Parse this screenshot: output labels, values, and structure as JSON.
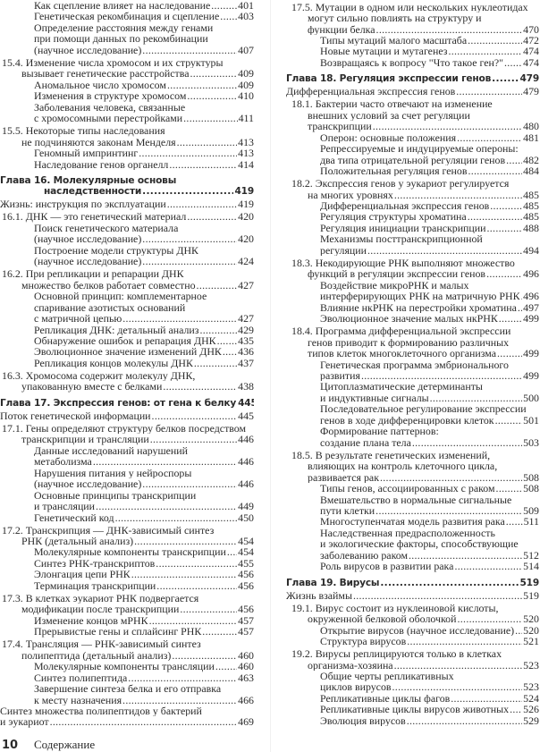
{
  "columns": [
    {
      "entries": [
        {
          "type": "sub",
          "lines": [
            "Как сцепление влияет на наследование"
          ],
          "page": "401"
        },
        {
          "type": "sub",
          "lines": [
            "Генетическая рекомбинация и сцепление"
          ],
          "page": "403"
        },
        {
          "type": "sub",
          "lines": [
            "Определение расстояния между генами",
            "при помощи данных по рекомбинации",
            "(научное исследование)"
          ],
          "page": "407"
        },
        {
          "type": "section",
          "lines": [
            "15.4. Изменение числа хромосом и их структуры",
            "вызывает генетические расстройства"
          ],
          "page": "409"
        },
        {
          "type": "sub",
          "lines": [
            "Аномальное число хромосом"
          ],
          "page": "409"
        },
        {
          "type": "sub",
          "lines": [
            "Изменения в структуре хромосом"
          ],
          "page": "410"
        },
        {
          "type": "sub",
          "lines": [
            "Заболевания человека, связанные",
            "с хромосомными перестройками"
          ],
          "page": "411"
        },
        {
          "type": "section",
          "lines": [
            "15.5. Некоторые типы наследования",
            "не подчиняются законам Менделя"
          ],
          "page": "413"
        },
        {
          "type": "sub",
          "lines": [
            "Геномный импринтинг"
          ],
          "page": "413"
        },
        {
          "type": "sub",
          "lines": [
            "Наследование генов органелл"
          ],
          "page": "414"
        },
        {
          "type": "chapter",
          "lines": [
            "Глава 16. Молекулярные основы",
            "наследственности"
          ],
          "page": "419"
        },
        {
          "type": "top",
          "lines": [
            "Жизнь: инструкция по эксплуатации"
          ],
          "page": "419"
        },
        {
          "type": "section",
          "lines": [
            "16.1. ДНК — это генетический материал"
          ],
          "page": "420"
        },
        {
          "type": "sub",
          "lines": [
            "Поиск генетического материала",
            "(научное исследование)"
          ],
          "page": "420"
        },
        {
          "type": "sub",
          "lines": [
            "Построение модели структуры ДНК",
            "(научное исследование)"
          ],
          "page": "424"
        },
        {
          "type": "section",
          "lines": [
            "16.2. При репликации и репарации ДНК",
            "множество белков работает совместно"
          ],
          "page": "427"
        },
        {
          "type": "sub",
          "lines": [
            "Основной принцип: комплементарное",
            "спаривание азотистых оснований",
            "с матричной цепью"
          ],
          "page": "427"
        },
        {
          "type": "sub",
          "lines": [
            "Репликация ДНК: детальный анализ"
          ],
          "page": "429"
        },
        {
          "type": "sub",
          "lines": [
            "Обнаружение ошибок и репарация ДНК"
          ],
          "page": "435"
        },
        {
          "type": "sub",
          "lines": [
            "Эволюционное значение изменений ДНК"
          ],
          "page": "436"
        },
        {
          "type": "sub",
          "lines": [
            "Репликация концов молекулы ДНК"
          ],
          "page": "437"
        },
        {
          "type": "section",
          "lines": [
            "16.3. Хромосома содержит молекулу ДНК,",
            "упакованную вместе с белками"
          ],
          "page": "438"
        },
        {
          "type": "chapter",
          "lines": [
            "Глава 17. Экспрессия генов: от гена к белку"
          ],
          "page": "445"
        },
        {
          "type": "top",
          "lines": [
            "Поток генетической информации"
          ],
          "page": "445"
        },
        {
          "type": "section",
          "lines": [
            "17.1. Гены определяют структуру белков посредством",
            "транскрипции и трансляции"
          ],
          "page": "446"
        },
        {
          "type": "sub",
          "lines": [
            "Данные исследований нарушений",
            "метаболизма"
          ],
          "page": "446"
        },
        {
          "type": "sub",
          "lines": [
            "Нарушения питания у нейроспоры",
            "(научное исследование)"
          ],
          "page": "446"
        },
        {
          "type": "sub",
          "lines": [
            "Основные принципы транскрипции",
            "и трансляции"
          ],
          "page": "449"
        },
        {
          "type": "sub",
          "lines": [
            "Генетический код"
          ],
          "page": "450"
        },
        {
          "type": "section",
          "lines": [
            "17.2. Транскрипция — ДНК-зависимый синтез",
            "РНК (детальный анализ)"
          ],
          "page": "454"
        },
        {
          "type": "sub",
          "lines": [
            "Молекулярные компоненты транскрипции"
          ],
          "page": "454"
        },
        {
          "type": "sub",
          "lines": [
            "Синтез РНК-транскриптов"
          ],
          "page": "455"
        },
        {
          "type": "sub",
          "lines": [
            "Элонгация цепи РНК"
          ],
          "page": "456"
        },
        {
          "type": "sub",
          "lines": [
            "Терминация транскрипции"
          ],
          "page": "456"
        },
        {
          "type": "section",
          "lines": [
            "17.3. В клетках эукариот РНК подвергается",
            "модификации после транскрипции"
          ],
          "page": "456"
        },
        {
          "type": "sub",
          "lines": [
            "Изменение концов мРНК"
          ],
          "page": "457"
        },
        {
          "type": "sub",
          "lines": [
            "Прерывистые гены и сплайсинг РНК"
          ],
          "page": "457"
        },
        {
          "type": "section",
          "lines": [
            "17.4. Трансляция — РНК-зависимый синтез",
            "полипептида (детальный анализ)"
          ],
          "page": "460"
        },
        {
          "type": "sub",
          "lines": [
            "Молекулярные компоненты трансляции"
          ],
          "page": "460"
        },
        {
          "type": "sub",
          "lines": [
            "Синтез полипептида"
          ],
          "page": "463"
        },
        {
          "type": "sub",
          "lines": [
            "Завершение синтеза белка и его отправка",
            "к месту назначения"
          ],
          "page": "466"
        },
        {
          "type": "top",
          "lines": [
            "Синтез множества полипептидов у бактерий",
            "и эукариот"
          ],
          "page": "469"
        }
      ]
    },
    {
      "entries": [
        {
          "type": "section",
          "lines": [
            "17.5. Мутации в одном или нескольких нуклеотидах",
            "могут сильно повлиять на структуру и",
            "функции белка"
          ],
          "page": "470"
        },
        {
          "type": "sub",
          "lines": [
            "Типы мутаций малого масштаба"
          ],
          "page": "472"
        },
        {
          "type": "sub",
          "lines": [
            "Новые мутации и мутагенез"
          ],
          "page": "474"
        },
        {
          "type": "sub",
          "lines": [
            "Возвращаясь к вопросу \"Что такое ген?\""
          ],
          "page": "474"
        },
        {
          "type": "chapter",
          "lines": [
            "Глава 18. Регуляция экспрессии генов"
          ],
          "page": "479"
        },
        {
          "type": "top",
          "lines": [
            "Дифференциальная экспрессия генов"
          ],
          "page": "479"
        },
        {
          "type": "section",
          "lines": [
            "18.1. Бактерии часто отвечают на изменение",
            "внешних условий за счет регуляции",
            "транскрипции"
          ],
          "page": "480"
        },
        {
          "type": "sub",
          "lines": [
            "Оперон: основные положения"
          ],
          "page": "481"
        },
        {
          "type": "sub",
          "lines": [
            "Репрессируемые и индуцируемые опероны:",
            "два типа отрицательной регуляции генов"
          ],
          "page": "482"
        },
        {
          "type": "sub",
          "lines": [
            "Положительная регуляция генов"
          ],
          "page": "484"
        },
        {
          "type": "section",
          "lines": [
            "18.2. Экспрессия генов у эукариот регулируется",
            "на многих уровнях"
          ],
          "page": "485"
        },
        {
          "type": "sub",
          "lines": [
            "Дифференциальная экспрессия генов"
          ],
          "page": "485"
        },
        {
          "type": "sub",
          "lines": [
            "Регуляция структуры хроматина"
          ],
          "page": "485"
        },
        {
          "type": "sub",
          "lines": [
            "Регуляция инициации транскрипции"
          ],
          "page": "488"
        },
        {
          "type": "sub",
          "lines": [
            "Механизмы посттранскрипционной",
            "регуляции"
          ],
          "page": "494"
        },
        {
          "type": "section",
          "lines": [
            "18.3. Некодирующие РНК выполняют множество",
            "функций в регуляции экспрессии генов"
          ],
          "page": "496"
        },
        {
          "type": "sub",
          "lines": [
            "Воздействие микроРНК и малых",
            "интерферирующих РНК на матричную РНК"
          ],
          "page": "496"
        },
        {
          "type": "sub",
          "lines": [
            "Влияние нкРНК на перестройки хроматина"
          ],
          "page": "497"
        },
        {
          "type": "sub",
          "lines": [
            "Эволюционное значение малых нкРНК"
          ],
          "page": "499"
        },
        {
          "type": "section",
          "lines": [
            "18.4. Программа дифференциальной экспрессии",
            "генов приводит к формированию различных",
            "типов клеток многоклеточного организма"
          ],
          "page": "499"
        },
        {
          "type": "sub",
          "lines": [
            "Генетическая программа эмбрионального",
            "развития"
          ],
          "page": "499"
        },
        {
          "type": "sub",
          "lines": [
            "Цитоплазматические детерминанты",
            "и индуктивные сигналы"
          ],
          "page": "500"
        },
        {
          "type": "sub",
          "lines": [
            "Последовательное регулирование экспрессии",
            "генов в ходе дифференцировки клеток"
          ],
          "page": "501"
        },
        {
          "type": "sub",
          "lines": [
            "Формирование паттернов:",
            "создание плана тела"
          ],
          "page": "503"
        },
        {
          "type": "section",
          "lines": [
            "18.5. В результате генетических изменений,",
            "влияющих на контроль клеточного цикла,",
            "развивается рак"
          ],
          "page": "508"
        },
        {
          "type": "sub",
          "lines": [
            "Типы генов, ассоциированных с раком"
          ],
          "page": "508"
        },
        {
          "type": "sub",
          "lines": [
            "Вмешательство в нормальные сигнальные",
            "пути клетки"
          ],
          "page": "509"
        },
        {
          "type": "sub",
          "lines": [
            "Многоступенчатая модель развития рака"
          ],
          "page": "511"
        },
        {
          "type": "sub",
          "lines": [
            "Наследственная предрасположенность",
            "и экологические факторы, способствующие",
            "заболеванию раком"
          ],
          "page": "512"
        },
        {
          "type": "sub",
          "lines": [
            "Роль вирусов в развитии рака"
          ],
          "page": "514"
        },
        {
          "type": "chapter",
          "lines": [
            "Глава 19. Вирусы"
          ],
          "page": "519"
        },
        {
          "type": "top",
          "lines": [
            "Жизнь взаймы"
          ],
          "page": "519"
        },
        {
          "type": "section",
          "lines": [
            "19.1. Вирус состоит из нуклеиновой кислоты,",
            "окруженной белковой оболочкой"
          ],
          "page": "520"
        },
        {
          "type": "sub",
          "lines": [
            "Открытие вирусов (научное исследование)"
          ],
          "page": "520"
        },
        {
          "type": "sub",
          "lines": [
            "Структура вирусов"
          ],
          "page": "521"
        },
        {
          "type": "section",
          "lines": [
            "19.2. Вирусы реплицируются только в клетках",
            "организма-хозяина"
          ],
          "page": "523"
        },
        {
          "type": "sub",
          "lines": [
            "Общие черты репликативных",
            "циклов вирусов"
          ],
          "page": "523"
        },
        {
          "type": "sub",
          "lines": [
            "Репликативные циклы фагов"
          ],
          "page": "524"
        },
        {
          "type": "sub",
          "lines": [
            "Репликативные циклы вирусов животных"
          ],
          "page": "526"
        },
        {
          "type": "sub",
          "lines": [
            "Эволюция вирусов"
          ],
          "page": "529"
        }
      ]
    }
  ],
  "footer": {
    "page_number": "10",
    "title": "Содержание"
  }
}
